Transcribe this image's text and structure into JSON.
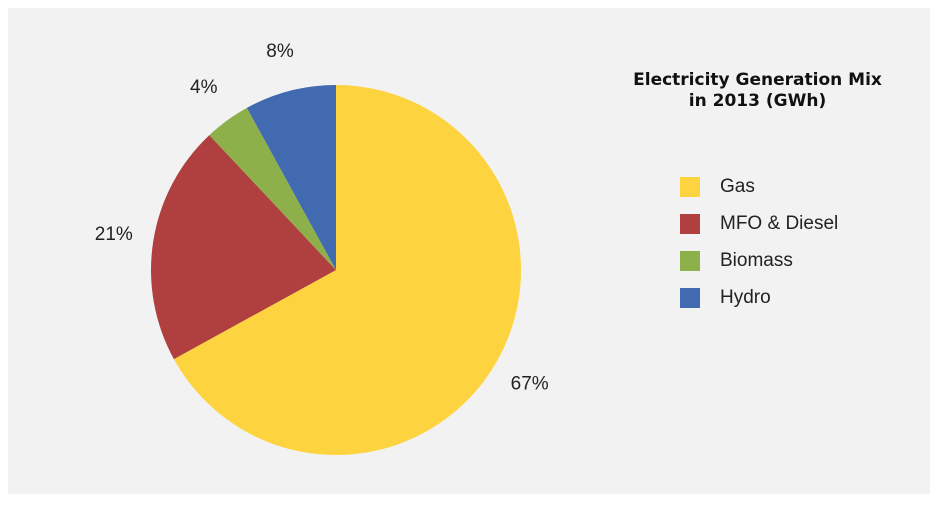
{
  "chart_data": {
    "type": "pie",
    "title": "Electricity Generation Mix in 2013 (GWh)",
    "categories": [
      "Gas",
      "MFO & Diesel",
      "Biomass",
      "Hydro"
    ],
    "values": [
      67,
      21,
      4,
      8
    ],
    "value_labels": [
      "67%",
      "21%",
      "4%",
      "8%"
    ],
    "colors": [
      "#fdd43f",
      "#b03f40",
      "#8db04a",
      "#426ab0"
    ],
    "legend": "right"
  }
}
